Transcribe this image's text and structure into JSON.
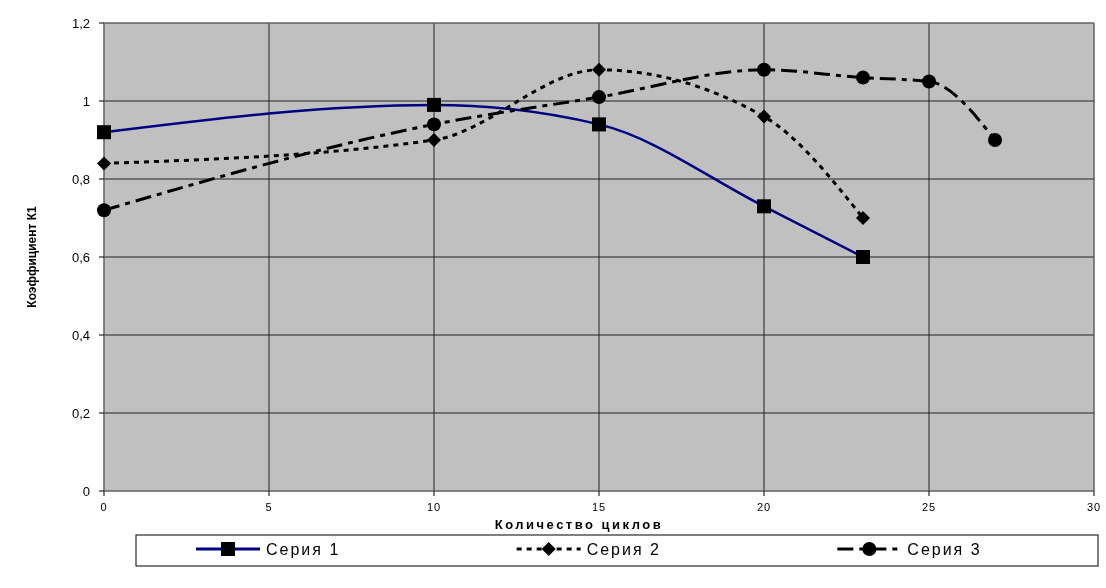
{
  "chart_data": {
    "type": "line",
    "xlabel": "Количество циклов",
    "ylabel": "Коэффициент К1",
    "xlim": [
      0,
      30
    ],
    "xticks": [
      0,
      5,
      10,
      15,
      20,
      25,
      30
    ],
    "ylim": [
      0,
      1.2
    ],
    "yticks": [
      0,
      {
        "value": 0.2,
        "label": "0,2"
      },
      {
        "value": 0.4,
        "label": "0,4"
      },
      {
        "value": 0.6,
        "label": "0,6"
      },
      {
        "value": 0.8,
        "label": "0,8"
      },
      1,
      {
        "value": 1.2,
        "label": "1,2"
      }
    ],
    "grid": true,
    "legend": "bottom",
    "series": [
      {
        "name": "Серия 1",
        "color": "#000080",
        "marker": "square",
        "line_style": "solid",
        "x": [
          0,
          10,
          15,
          20,
          23
        ],
        "values": [
          0.92,
          0.99,
          0.94,
          0.73,
          0.6
        ]
      },
      {
        "name": "Серия 2",
        "color": "#000000",
        "marker": "diamond",
        "line_style": "dotted",
        "x": [
          0,
          10,
          15,
          20,
          23
        ],
        "values": [
          0.84,
          0.9,
          1.08,
          0.96,
          0.7
        ]
      },
      {
        "name": "Серия 3",
        "color": "#000000",
        "marker": "circle",
        "line_style": "dashed",
        "x": [
          0,
          10,
          15,
          20,
          23,
          25,
          27
        ],
        "values": [
          0.72,
          0.94,
          1.01,
          1.08,
          1.06,
          1.05,
          0.9
        ]
      }
    ]
  }
}
